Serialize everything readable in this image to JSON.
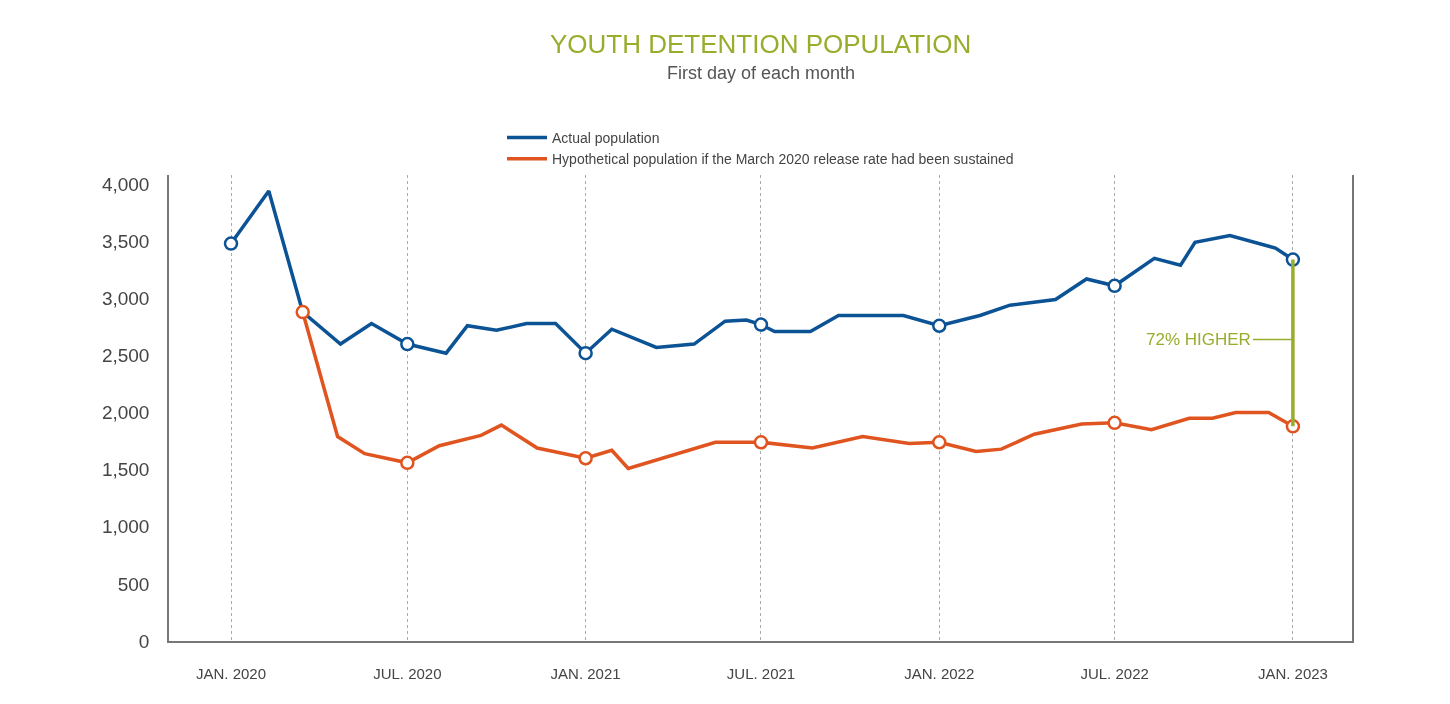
{
  "chart_data": {
    "type": "line",
    "title": "YOUTH DETENTION POPULATION",
    "subtitle": "First day of each month",
    "series": [
      {
        "name": "Actual population",
        "color": "#0b5394",
        "x": [
          "2020-01-01",
          "2020-02-09",
          "2020-03-15",
          "2020-04-23",
          "2020-05-25",
          "2020-07-01",
          "2020-08-10",
          "2020-09-01",
          "2020-10-01",
          "2020-11-01",
          "2020-12-01",
          "2021-01-01",
          "2021-01-28",
          "2021-03-15",
          "2021-04-23",
          "2021-05-25",
          "2021-06-16",
          "2021-07-01",
          "2021-07-15",
          "2021-08-21",
          "2021-09-19",
          "2021-11-25",
          "2022-01-01",
          "2022-02-12",
          "2022-03-15",
          "2022-05-01",
          "2022-06-02",
          "2022-07-01",
          "2022-08-11",
          "2022-09-07",
          "2022-09-22",
          "2022-10-28",
          "2022-12-14",
          "2023-01-01"
        ],
        "values": [
          3480,
          3940,
          2880,
          2600,
          2780,
          2600,
          2520,
          2760,
          2720,
          2780,
          2780,
          2520,
          2730,
          2570,
          2600,
          2800,
          2810,
          2770,
          2710,
          2710,
          2850,
          2850,
          2760,
          2850,
          2940,
          2990,
          3170,
          3110,
          3350,
          3290,
          3490,
          3550,
          3440,
          3340
        ]
      },
      {
        "name": "Hypothetical population if the March 2020 release rate had been sustained",
        "color": "#e0541f",
        "x": [
          "2020-03-15",
          "2020-04-20",
          "2020-05-18",
          "2020-07-01",
          "2020-08-03",
          "2020-09-15",
          "2020-10-06",
          "2020-11-12",
          "2021-01-01",
          "2021-01-28",
          "2021-02-14",
          "2021-05-15",
          "2021-07-01",
          "2021-08-23",
          "2021-10-14",
          "2021-12-01",
          "2022-01-01",
          "2022-02-08",
          "2022-03-06",
          "2022-04-09",
          "2022-05-28",
          "2022-07-01",
          "2022-08-08",
          "2022-09-16",
          "2022-10-10",
          "2022-11-03",
          "2022-12-07",
          "2023-01-01"
        ],
        "values": [
          2880,
          1790,
          1640,
          1560,
          1710,
          1800,
          1890,
          1690,
          1600,
          1670,
          1510,
          1740,
          1740,
          1690,
          1790,
          1730,
          1740,
          1660,
          1680,
          1810,
          1900,
          1910,
          1850,
          1950,
          1950,
          2000,
          2000,
          1880
        ]
      },
      {
        "type": "scatter",
        "marker": "circle",
        "color": "#0b5394",
        "x": [
          "2020-01-01",
          "2020-07-01",
          "2021-01-01",
          "2021-07-01",
          "2022-01-01",
          "2022-07-01",
          "2023-01-01"
        ],
        "values": [
          3480,
          2600,
          2520,
          2770,
          2760,
          3110,
          3340
        ]
      },
      {
        "type": "scatter",
        "marker": "circle",
        "color": "#e0541f",
        "x": [
          "2020-03-15",
          "2020-07-01",
          "2021-01-01",
          "2021-07-01",
          "2022-01-01",
          "2022-07-01",
          "2023-01-01"
        ],
        "values": [
          2880,
          1560,
          1600,
          1740,
          1740,
          1910,
          1880
        ]
      },
      {
        "type": "line",
        "color": "#97ad2c",
        "x": [
          "2023-01-01",
          "2023-01-01"
        ],
        "values": [
          1880,
          3340
        ]
      }
    ],
    "annotations": [
      {
        "text": "72% HIGHER",
        "x": "2023-01-01",
        "y": 2640
      }
    ],
    "xlim": [
      "2019-10-29",
      "2023-03-03"
    ],
    "xticks": [
      {
        "value": "2020-01-01",
        "label": "JAN. 2020"
      },
      {
        "value": "2020-07-01",
        "label": "JUL. 2020"
      },
      {
        "value": "2021-01-01",
        "label": "JAN. 2021"
      },
      {
        "value": "2021-07-01",
        "label": "JUL. 2021"
      },
      {
        "value": "2022-01-01",
        "label": "JAN. 2022"
      },
      {
        "value": "2022-07-01",
        "label": "JUL. 2022"
      },
      {
        "value": "2023-01-01",
        "label": "JAN. 2023"
      }
    ],
    "ylim": [
      0,
      4080
    ],
    "yticks": [
      {
        "value": 0,
        "label": "0"
      },
      {
        "value": 500,
        "label": "500"
      },
      {
        "value": 1000,
        "label": "1,000"
      },
      {
        "value": 1500,
        "label": "1,500"
      },
      {
        "value": 2000,
        "label": "2,000"
      },
      {
        "value": 2500,
        "label": "2,500"
      },
      {
        "value": 3000,
        "label": "3,000"
      },
      {
        "value": 3500,
        "label": "3,500"
      },
      {
        "value": 4000,
        "label": "4,000"
      }
    ],
    "grid": "x",
    "legend": "top"
  }
}
